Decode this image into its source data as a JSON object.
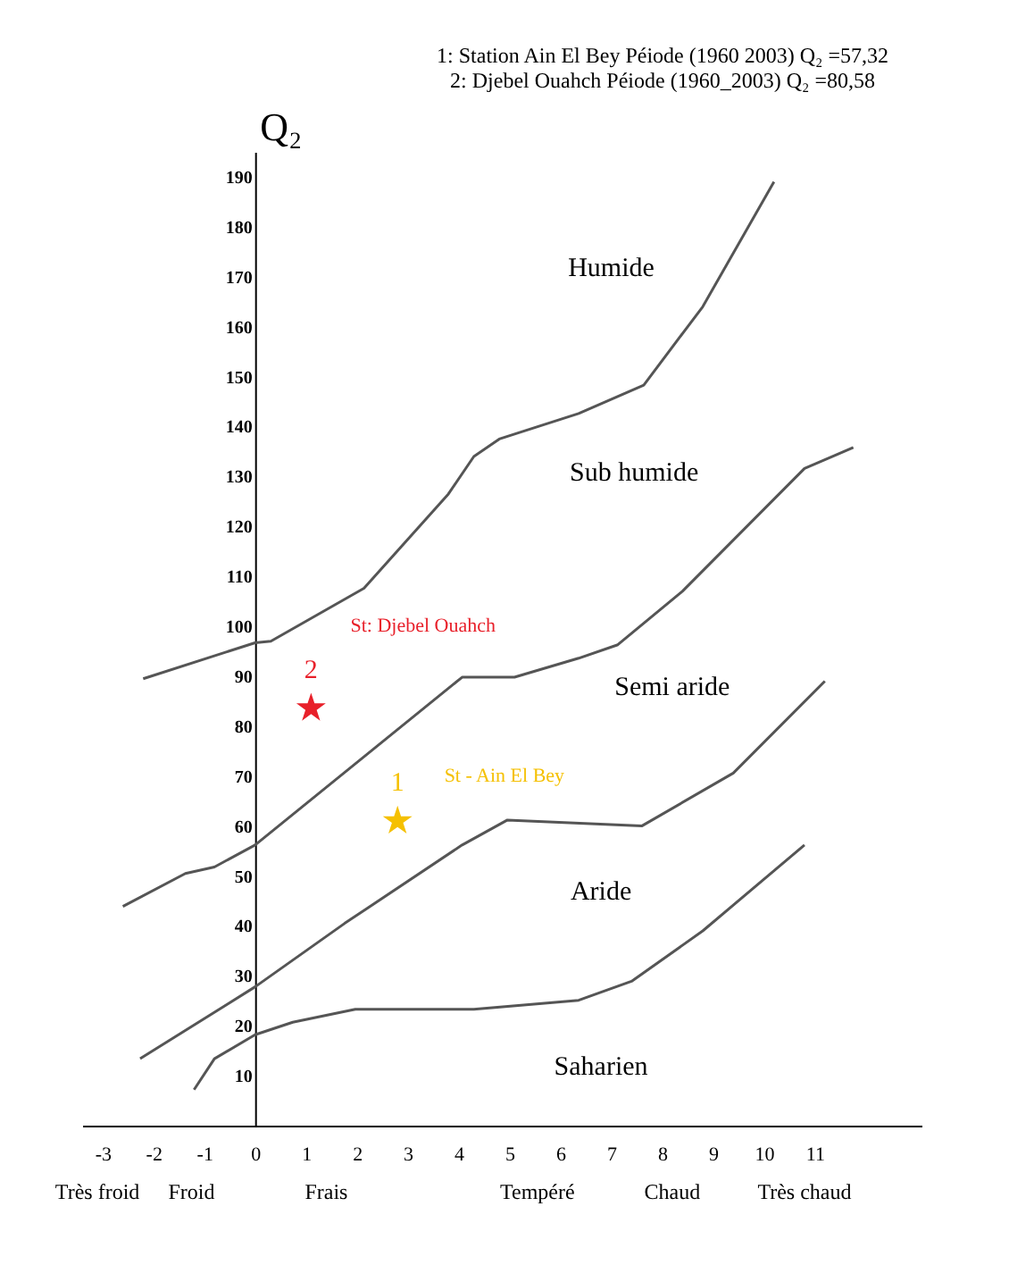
{
  "chart_data": {
    "type": "line",
    "ylabel": "Q₂",
    "annotations": [
      "1: Station Ain El Bey      Péiode (1960  2003)   Q₂ =57,32",
      "2: Djebel Ouahch             Péiode (1960_2003)   Q₂ =80,58",
      "Humide",
      "Sub humide",
      "Semi aride",
      "Aride",
      "Saharien",
      "St: Djebel Ouahch",
      "St - Ain El Bey",
      "Très froid",
      "Froid",
      "Frais",
      "Tempéré",
      "Chaud",
      "Très chaud"
    ],
    "xlim": [
      -3.4,
      13.1
    ],
    "ylim": [
      0,
      195
    ],
    "xticks": [
      -3,
      -2,
      -1,
      0,
      1,
      2,
      3,
      4,
      5,
      6,
      7,
      8,
      9,
      10,
      11
    ],
    "yticks": [
      10,
      20,
      30,
      40,
      50,
      60,
      70,
      80,
      90,
      100,
      110,
      120,
      130,
      140,
      150,
      160,
      170,
      180,
      190
    ],
    "grid": false,
    "series": [
      {
        "color": "#555555",
        "x": [
          -2.2,
          0,
          0.31,
          2.14,
          3.8,
          4.3,
          4.8,
          6.36,
          7.64,
          8.8,
          10.2
        ],
        "values": [
          89.5,
          96.7,
          97,
          107.6,
          126.5,
          134,
          137.5,
          142.6,
          148.3,
          164,
          189
        ]
      },
      {
        "color": "#555555",
        "x": [
          -2.6,
          -1.37,
          -0.8,
          0,
          4.07,
          5.1,
          6.36,
          7.13,
          8.4,
          10.8,
          11.76
        ],
        "values": [
          43.9,
          50.5,
          51.8,
          56.2,
          89.8,
          89.8,
          93.6,
          96.3,
          107,
          131.6,
          135.8
        ]
      },
      {
        "color": "#555555",
        "x": [
          -2.26,
          0,
          1.76,
          4.07,
          4.96,
          7.6,
          9.4,
          11.2
        ],
        "values": [
          13.4,
          27.8,
          40.5,
          56.2,
          61.2,
          60,
          70.6,
          89
        ]
      },
      {
        "color": "#555555",
        "x": [
          -1.2,
          -0.8,
          0,
          0.74,
          1.97,
          4.3,
          6.36,
          7.4,
          8.8,
          10.8
        ],
        "values": [
          7.2,
          13.4,
          18.2,
          20.7,
          23.3,
          23.3,
          25.1,
          28.9,
          39,
          56.2
        ]
      },
      {
        "type": "scatter",
        "marker": "star",
        "name": "2",
        "color": "#e8202a",
        "x": [
          1.1
        ],
        "values": [
          83.6
        ]
      },
      {
        "type": "scatter",
        "marker": "star",
        "name": "1",
        "color": "#f5c000",
        "x": [
          2.8
        ],
        "values": [
          61
        ]
      }
    ]
  }
}
